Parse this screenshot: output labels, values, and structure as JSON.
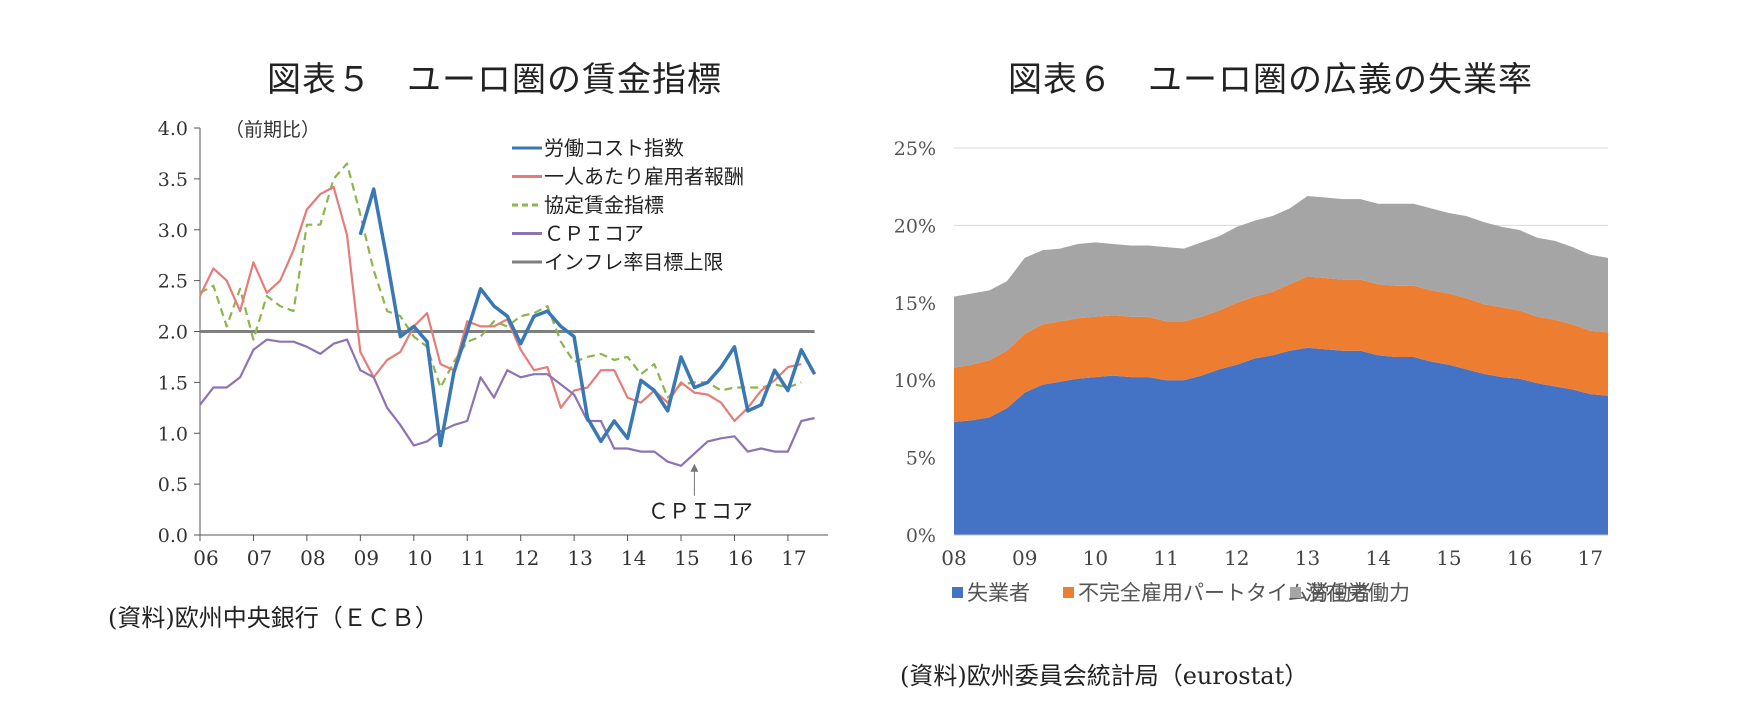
{
  "chart_data": [
    {
      "id": "chart5",
      "type": "line",
      "title": "図表５　ユーロ圏の賃金指標",
      "ylabel": "（前期比）",
      "ylim": [
        0,
        4
      ],
      "yticks": [
        "4.0",
        "3.5",
        "3.0",
        "2.5",
        "2.0",
        "1.5",
        "1.0",
        "0.5",
        "0.0"
      ],
      "xticks": [
        "06",
        "07",
        "08",
        "09",
        "10",
        "11",
        "12",
        "13",
        "14",
        "15",
        "16",
        "17"
      ],
      "x_start": 2006.0,
      "x_step": 0.25,
      "series": [
        {
          "name": "労働コスト指数",
          "color": "#3a78b4",
          "dash": "",
          "start_index": 12,
          "values": [
            2.95,
            3.4,
            2.7,
            1.95,
            2.05,
            1.9,
            0.88,
            1.6,
            2.0,
            2.42,
            2.25,
            2.15,
            1.88,
            2.15,
            2.2,
            2.05,
            1.95,
            1.15,
            0.92,
            1.12,
            0.95,
            1.52,
            1.42,
            1.22,
            1.75,
            1.45,
            1.5,
            1.65,
            1.85,
            1.22,
            1.28,
            1.62,
            1.42,
            1.82,
            1.58
          ]
        },
        {
          "name": "一人あたり雇用者報酬",
          "color": "#e47d79",
          "dash": "",
          "start_index": 0,
          "values": [
            2.35,
            2.62,
            2.5,
            2.2,
            2.68,
            2.38,
            2.5,
            2.8,
            3.2,
            3.35,
            3.42,
            2.95,
            1.8,
            1.55,
            1.72,
            1.8,
            2.05,
            2.18,
            1.68,
            1.62,
            2.1,
            2.05,
            2.05,
            2.12,
            1.82,
            1.62,
            1.65,
            1.25,
            1.42,
            1.45,
            1.62,
            1.62,
            1.35,
            1.3,
            1.42,
            1.3,
            1.5,
            1.4,
            1.38,
            1.3,
            1.12,
            1.25,
            1.42,
            1.52,
            1.65,
            1.68
          ]
        },
        {
          "name": "協定賃金指標",
          "color": "#8db54b",
          "dash": "8,5",
          "start_index": 0,
          "values": [
            2.38,
            2.45,
            2.05,
            2.42,
            1.92,
            2.35,
            2.25,
            2.2,
            3.05,
            3.05,
            3.5,
            3.65,
            3.15,
            2.6,
            2.2,
            2.15,
            1.95,
            1.85,
            1.45,
            1.7,
            1.9,
            1.95,
            2.1,
            2.05,
            2.15,
            2.18,
            2.25,
            1.9,
            1.7,
            1.75,
            1.78,
            1.72,
            1.75,
            1.58,
            1.68,
            1.35,
            1.48,
            1.5,
            1.5,
            1.42,
            1.45,
            1.45,
            1.45,
            1.48,
            1.45,
            1.5
          ]
        },
        {
          "name": "ＣＰＩコア",
          "color": "#8c73b4",
          "dash": "",
          "start_index": 0,
          "values": [
            1.28,
            1.45,
            1.45,
            1.55,
            1.82,
            1.92,
            1.9,
            1.9,
            1.85,
            1.78,
            1.88,
            1.92,
            1.62,
            1.55,
            1.25,
            1.08,
            0.88,
            0.92,
            1.02,
            1.08,
            1.12,
            1.55,
            1.35,
            1.62,
            1.55,
            1.58,
            1.58,
            1.48,
            1.38,
            1.12,
            1.12,
            0.85,
            0.85,
            0.82,
            0.82,
            0.72,
            0.68,
            0.8,
            0.92,
            0.95,
            0.97,
            0.82,
            0.85,
            0.82,
            0.82,
            1.12,
            1.15
          ]
        },
        {
          "name": "インフレ率目標上限",
          "color": "#7f7f7f",
          "dash": "",
          "start_index": 0,
          "values": [
            2.0,
            2.0,
            2.0,
            2.0,
            2.0,
            2.0,
            2.0,
            2.0,
            2.0,
            2.0,
            2.0,
            2.0,
            2.0,
            2.0,
            2.0,
            2.0,
            2.0,
            2.0,
            2.0,
            2.0,
            2.0,
            2.0,
            2.0,
            2.0,
            2.0,
            2.0,
            2.0,
            2.0,
            2.0,
            2.0,
            2.0,
            2.0,
            2.0,
            2.0,
            2.0,
            2.0,
            2.0,
            2.0,
            2.0,
            2.0,
            2.0,
            2.0,
            2.0,
            2.0,
            2.0,
            2.0,
            2.0
          ]
        }
      ],
      "annotations": [
        {
          "text": "ＣＰＩコア",
          "x": 2015.25,
          "y": 0.72
        }
      ],
      "legend": "top-right",
      "source": "(資料)欧州中央銀行（ＥＣＢ）"
    },
    {
      "id": "chart6",
      "type": "area",
      "title": "図表６　ユーロ圏の広義の失業率",
      "ylim": [
        0,
        25
      ],
      "yticks": [
        "0%",
        "5%",
        "10%",
        "15%",
        "20%",
        "25%"
      ],
      "xticks": [
        "08",
        "09",
        "10",
        "11",
        "12",
        "13",
        "14",
        "15",
        "16",
        "17"
      ],
      "x_start": 2008.0,
      "x_step": 0.25,
      "grid": true,
      "series": [
        {
          "name": "失業者",
          "color": "#4472c4",
          "values": [
            7.3,
            7.4,
            7.6,
            8.2,
            9.2,
            9.7,
            9.9,
            10.1,
            10.2,
            10.3,
            10.2,
            10.2,
            10.0,
            10.0,
            10.3,
            10.7,
            11.0,
            11.4,
            11.6,
            11.9,
            12.1,
            12.0,
            11.9,
            11.9,
            11.6,
            11.5,
            11.5,
            11.2,
            11.0,
            10.7,
            10.4,
            10.2,
            10.1,
            9.8,
            9.6,
            9.4,
            9.1,
            9.0
          ]
        },
        {
          "name": "不完全雇用パートタイム労働者",
          "color": "#ed7d31",
          "values": [
            3.5,
            3.6,
            3.7,
            3.7,
            3.8,
            3.9,
            3.9,
            3.9,
            3.9,
            3.9,
            3.9,
            3.9,
            3.8,
            3.8,
            3.8,
            3.8,
            4.0,
            4.0,
            4.1,
            4.3,
            4.6,
            4.6,
            4.6,
            4.6,
            4.6,
            4.6,
            4.6,
            4.6,
            4.6,
            4.6,
            4.5,
            4.5,
            4.4,
            4.3,
            4.3,
            4.2,
            4.1,
            4.1
          ]
        },
        {
          "name": "潜在労働力",
          "color": "#a5a5a5",
          "values": [
            4.6,
            4.6,
            4.5,
            4.5,
            4.9,
            4.8,
            4.7,
            4.8,
            4.8,
            4.6,
            4.6,
            4.6,
            4.8,
            4.7,
            4.8,
            4.8,
            4.9,
            4.9,
            4.9,
            4.9,
            5.2,
            5.2,
            5.2,
            5.2,
            5.2,
            5.3,
            5.3,
            5.3,
            5.2,
            5.3,
            5.3,
            5.2,
            5.2,
            5.1,
            5.1,
            5.0,
            4.9,
            4.8
          ]
        }
      ],
      "legend": "bottom",
      "source": "(資料)欧州委員会統計局（eurostat）"
    }
  ]
}
